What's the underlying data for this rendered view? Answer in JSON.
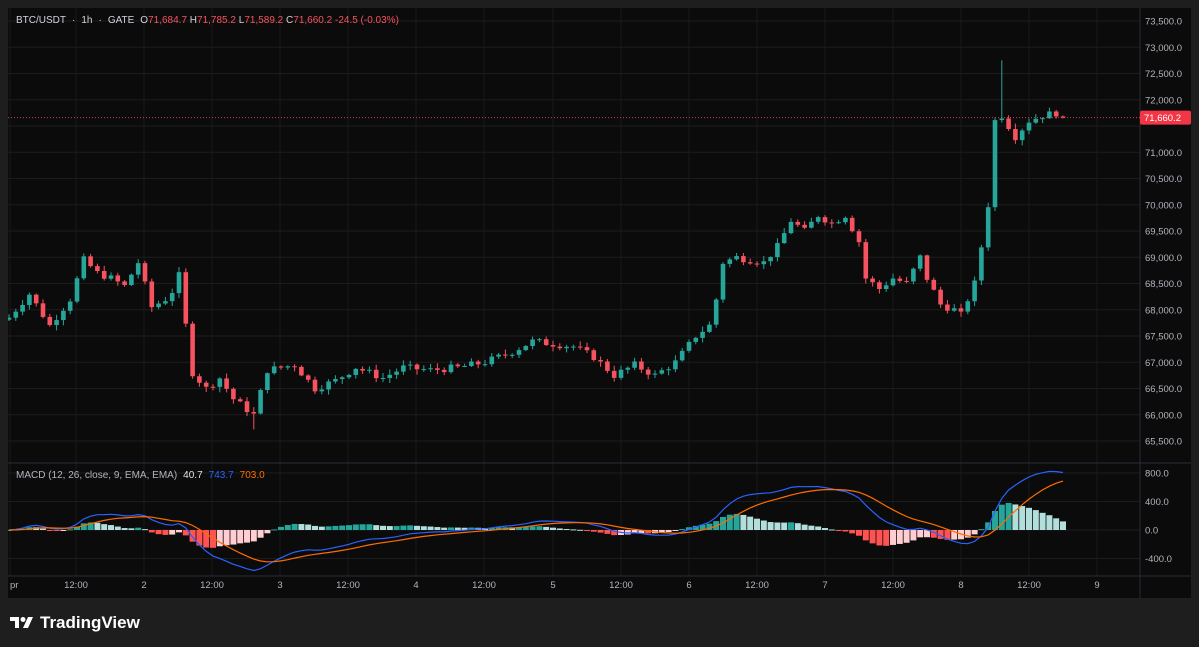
{
  "header": {
    "symbol": "BTC/USDT",
    "interval": "1h",
    "exchange": "GATE",
    "open_label": "O",
    "open": "71,684.7",
    "high_label": "H",
    "high": "71,785.2",
    "low_label": "L",
    "low": "71,589.2",
    "close_label": "C",
    "close": "71,660.2",
    "change": "-24.5 (-0.03%)"
  },
  "macd_legend": {
    "name": "MACD (12, 26, close, 9, EMA, EMA)",
    "hist": "40.7",
    "macd": "743.7",
    "signal": "703.0"
  },
  "last_price_label": "71,660.2",
  "brand": "TradingView",
  "colors": {
    "background": "#0b0b0b",
    "up": "#26a69a",
    "down": "#f7525f",
    "macd_line": "#2962ff",
    "signal_line": "#ff6d00",
    "hist_up_strong": "#26a69a",
    "hist_up_weak": "#b2dfdb",
    "hist_down_strong": "#ff5252",
    "hist_down_weak": "#ffcdd2"
  },
  "chart_data": [
    {
      "type": "candlestick",
      "title": "BTC/USDT · 1h · GATE",
      "y_axis_ticks": [
        "65,500.0",
        "66,000.0",
        "66,500.0",
        "67,000.0",
        "67,500.0",
        "68,000.0",
        "68,500.0",
        "69,000.0",
        "69,500.0",
        "70,000.0",
        "70,500.0",
        "71,000.0",
        "71,500.0",
        "72,000.0",
        "72,500.0",
        "73,000.0",
        "73,500.0"
      ],
      "ylim": [
        65100,
        73600
      ],
      "x_axis_ticks": [
        "pr",
        "12:00",
        "2",
        "12:00",
        "3",
        "12:00",
        "4",
        "12:00",
        "5",
        "12:00",
        "6",
        "12:00",
        "7",
        "12:00",
        "8",
        "12:00",
        "9"
      ],
      "last_price": 71660.2,
      "close_path": [
        {
          "t": 0,
          "c": 67850
        },
        {
          "t": 3,
          "c": 68300
        },
        {
          "t": 6,
          "c": 67700
        },
        {
          "t": 9,
          "c": 68200
        },
        {
          "t": 11,
          "c": 68950
        },
        {
          "t": 13,
          "c": 68700
        },
        {
          "t": 15,
          "c": 68600
        },
        {
          "t": 17,
          "c": 68450
        },
        {
          "t": 19,
          "c": 68900
        },
        {
          "t": 21,
          "c": 68050
        },
        {
          "t": 23,
          "c": 68200
        },
        {
          "t": 24,
          "c": 68350
        },
        {
          "t": 25,
          "c": 68650
        },
        {
          "t": 26,
          "c": 67700
        },
        {
          "t": 27,
          "c": 66800
        },
        {
          "t": 29,
          "c": 66500
        },
        {
          "t": 31,
          "c": 66700
        },
        {
          "t": 33,
          "c": 66300
        },
        {
          "t": 35,
          "c": 66100
        },
        {
          "t": 36,
          "c": 66000
        },
        {
          "t": 38,
          "c": 66850
        },
        {
          "t": 40,
          "c": 66900
        },
        {
          "t": 42,
          "c": 66950
        },
        {
          "t": 45,
          "c": 66500
        },
        {
          "t": 48,
          "c": 66650
        },
        {
          "t": 51,
          "c": 66900
        },
        {
          "t": 55,
          "c": 66700
        },
        {
          "t": 58,
          "c": 66900
        },
        {
          "t": 62,
          "c": 66850
        },
        {
          "t": 66,
          "c": 66900
        },
        {
          "t": 70,
          "c": 67000
        },
        {
          "t": 74,
          "c": 67200
        },
        {
          "t": 77,
          "c": 67400
        },
        {
          "t": 80,
          "c": 67350
        },
        {
          "t": 83,
          "c": 67300
        },
        {
          "t": 86,
          "c": 67100
        },
        {
          "t": 89,
          "c": 66750
        },
        {
          "t": 92,
          "c": 66950
        },
        {
          "t": 95,
          "c": 66750
        },
        {
          "t": 98,
          "c": 67000
        },
        {
          "t": 101,
          "c": 67500
        },
        {
          "t": 103,
          "c": 67700
        },
        {
          "t": 104,
          "c": 68200
        },
        {
          "t": 105,
          "c": 68900
        },
        {
          "t": 107,
          "c": 69000
        },
        {
          "t": 109,
          "c": 68950
        },
        {
          "t": 111,
          "c": 68900
        },
        {
          "t": 113,
          "c": 69200
        },
        {
          "t": 115,
          "c": 69700
        },
        {
          "t": 117,
          "c": 69500
        },
        {
          "t": 119,
          "c": 69800
        },
        {
          "t": 121,
          "c": 69650
        },
        {
          "t": 123,
          "c": 69800
        },
        {
          "t": 125,
          "c": 69300
        },
        {
          "t": 126,
          "c": 68600
        },
        {
          "t": 128,
          "c": 68400
        },
        {
          "t": 130,
          "c": 68600
        },
        {
          "t": 132,
          "c": 68500
        },
        {
          "t": 134,
          "c": 69000
        },
        {
          "t": 135,
          "c": 68600
        },
        {
          "t": 137,
          "c": 68100
        },
        {
          "t": 139,
          "c": 68000
        },
        {
          "t": 140,
          "c": 67900
        },
        {
          "t": 142,
          "c": 68500
        },
        {
          "t": 143,
          "c": 69200
        },
        {
          "t": 144,
          "c": 70000
        },
        {
          "t": 145,
          "c": 71600
        },
        {
          "t": 146,
          "c": 71700
        },
        {
          "t": 147,
          "c": 71500
        },
        {
          "t": 148,
          "c": 71300
        },
        {
          "t": 150,
          "c": 71600
        },
        {
          "t": 152,
          "c": 71700
        },
        {
          "t": 154,
          "c": 71750
        },
        {
          "t": 155,
          "c": 71660
        }
      ]
    },
    {
      "type": "macd",
      "title": "MACD (12, 26, close, 9, EMA, EMA)",
      "y_axis_ticks": [
        "800.0",
        "400.0",
        "0.0",
        "-400.0"
      ],
      "ylim": [
        -620,
        900
      ],
      "last_values": {
        "histogram": 40.7,
        "macd": 743.7,
        "signal": 703.0
      }
    }
  ]
}
